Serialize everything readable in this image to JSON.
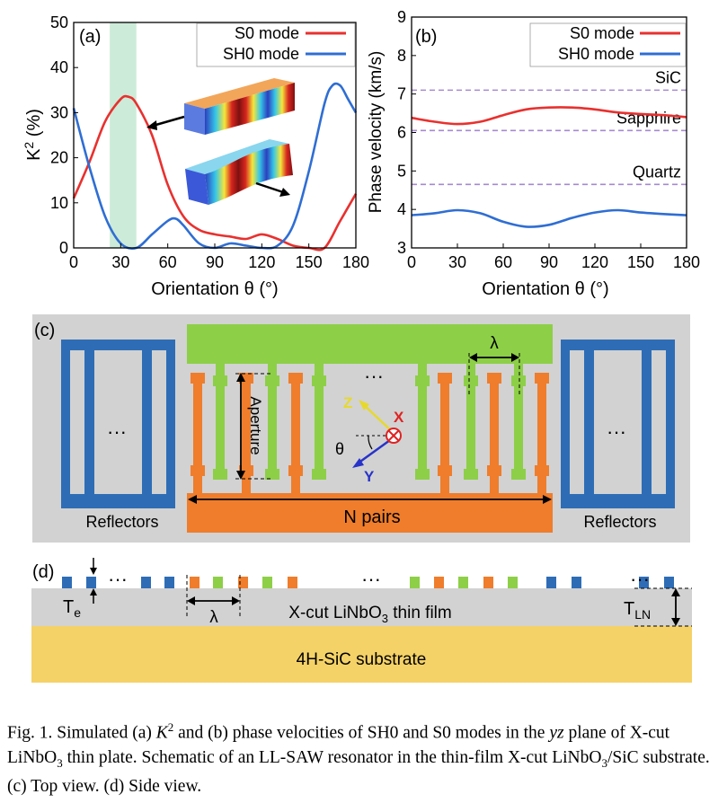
{
  "chart_data": [
    {
      "type": "line",
      "panel_label": "(a)",
      "xlabel": "Orientation θ (°)",
      "ylabel": "K² (%)",
      "xlim": [
        0,
        180
      ],
      "ylim": [
        0,
        50
      ],
      "xticks": [
        "0",
        "30",
        "60",
        "90",
        "120",
        "150",
        "180"
      ],
      "yticks": [
        "0",
        "10",
        "20",
        "30",
        "40",
        "50"
      ],
      "highlight_band": [
        23,
        40
      ],
      "legend": "top-right",
      "series": [
        {
          "name": "S0 mode",
          "color": "#e8312f",
          "x": [
            0,
            10,
            20,
            30,
            35,
            40,
            50,
            60,
            70,
            80,
            90,
            100,
            110,
            120,
            130,
            140,
            150,
            160,
            170,
            180
          ],
          "y": [
            11,
            19,
            28,
            33,
            33.5,
            32,
            25,
            14,
            7,
            4,
            3,
            2.5,
            2,
            3,
            2,
            0.5,
            0,
            0,
            6,
            12
          ]
        },
        {
          "name": "SH0 mode",
          "color": "#2f6ed3",
          "x": [
            0,
            10,
            20,
            30,
            40,
            50,
            60,
            65,
            70,
            80,
            90,
            100,
            110,
            120,
            130,
            140,
            150,
            160,
            165,
            170,
            175,
            180
          ],
          "y": [
            31,
            18,
            7,
            1,
            0,
            3,
            6,
            6.5,
            5,
            1,
            0,
            1,
            0.5,
            0,
            0.5,
            5,
            17,
            32,
            36,
            36,
            33,
            30
          ]
        }
      ],
      "annotations": []
    },
    {
      "type": "line",
      "panel_label": "(b)",
      "xlabel": "Orientation θ (°)",
      "ylabel": "Phase velocity (km/s)",
      "xlim": [
        0,
        180
      ],
      "ylim": [
        3,
        9
      ],
      "xticks": [
        "0",
        "30",
        "60",
        "90",
        "120",
        "150",
        "180"
      ],
      "yticks": [
        "3",
        "4",
        "5",
        "6",
        "7",
        "8",
        "9"
      ],
      "legend": "top-right",
      "series": [
        {
          "name": "S0 mode",
          "color": "#e8312f",
          "x": [
            0,
            15,
            30,
            45,
            60,
            75,
            90,
            105,
            120,
            135,
            150,
            165,
            180
          ],
          "y": [
            6.38,
            6.28,
            6.22,
            6.28,
            6.45,
            6.6,
            6.65,
            6.65,
            6.6,
            6.52,
            6.48,
            6.45,
            6.4
          ]
        },
        {
          "name": "SH0 mode",
          "color": "#2f6ed3",
          "x": [
            0,
            15,
            30,
            45,
            60,
            75,
            90,
            105,
            120,
            135,
            150,
            165,
            180
          ],
          "y": [
            3.85,
            3.9,
            3.98,
            3.9,
            3.68,
            3.55,
            3.6,
            3.78,
            3.92,
            3.98,
            3.92,
            3.88,
            3.85
          ]
        }
      ],
      "reference_lines": [
        {
          "label": "SiC",
          "y": 7.1
        },
        {
          "label": "Sapphire",
          "y": 6.05
        },
        {
          "label": "Quartz",
          "y": 4.65
        }
      ]
    }
  ],
  "panel_c": {
    "label": "(c)",
    "aperture_label": "Aperture",
    "lambda_label": "λ",
    "n_pairs_label": "N pairs",
    "reflectors_label_left": "Reflectors",
    "reflectors_label_right": "Reflectors",
    "dots": "···",
    "axis_z": "Z",
    "axis_x": "X",
    "axis_y": "Y",
    "theta": "θ"
  },
  "panel_d": {
    "label": "(d)",
    "te_label": "T",
    "te_sub": "e",
    "tln_label": "T",
    "tln_sub": "LN",
    "lambda_label": "λ",
    "film_label_a": "X-cut LiNbO",
    "film_label_sub": "3",
    "film_label_b": " thin film",
    "substrate_label": "4H-SiC substrate",
    "dots": "···"
  },
  "colors": {
    "s0": "#e8312f",
    "sh0": "#2f6ed3",
    "orange": "#ef7d2b",
    "green": "#8dcf47",
    "blue": "#2e6db6",
    "gray": "#d2d2d2",
    "gold": "#f5d267",
    "band": "#b7e2c8",
    "ref": "#a58ad0"
  },
  "caption": {
    "p1": "Fig. 1.   Simulated (a) ",
    "k": "K",
    "k_sup": "2",
    "p2": " and (b) phase velocities of SH0 and S0 modes in the ",
    "yz": "yz",
    "p3": " plane of X-cut LiNbO",
    "s1": "3",
    "p4": " thin plate. Schematic of an LL-SAW resonator in the thin-film X-cut LiNbO",
    "s2": "3",
    "p5": "/SiC substrate. (c) Top view. (d) Side view."
  }
}
